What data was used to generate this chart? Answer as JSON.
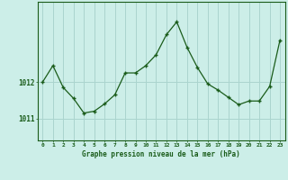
{
  "x": [
    0,
    1,
    2,
    3,
    4,
    5,
    6,
    7,
    8,
    9,
    10,
    11,
    12,
    13,
    14,
    15,
    16,
    17,
    18,
    19,
    20,
    21,
    22,
    23
  ],
  "y": [
    1012.0,
    1012.45,
    1011.85,
    1011.55,
    1011.15,
    1011.2,
    1011.4,
    1011.65,
    1012.25,
    1012.25,
    1012.45,
    1012.75,
    1013.3,
    1013.65,
    1012.95,
    1012.4,
    1011.95,
    1011.78,
    1011.58,
    1011.38,
    1011.48,
    1011.48,
    1011.88,
    1013.15
  ],
  "line_color": "#1a5c1a",
  "marker": "+",
  "bg_color": "#cceee8",
  "grid_color": "#aad4ce",
  "ytick_labels": [
    "1011",
    "1012"
  ],
  "ytick_values": [
    1011.0,
    1012.0
  ],
  "xlabel": "Graphe pression niveau de la mer (hPa)",
  "xlabel_color": "#1a5c1a",
  "axis_color": "#1a5c1a",
  "ylim": [
    1010.4,
    1014.2
  ],
  "xlim": [
    -0.5,
    23.5
  ],
  "figsize": [
    3.2,
    2.0
  ],
  "dpi": 100
}
